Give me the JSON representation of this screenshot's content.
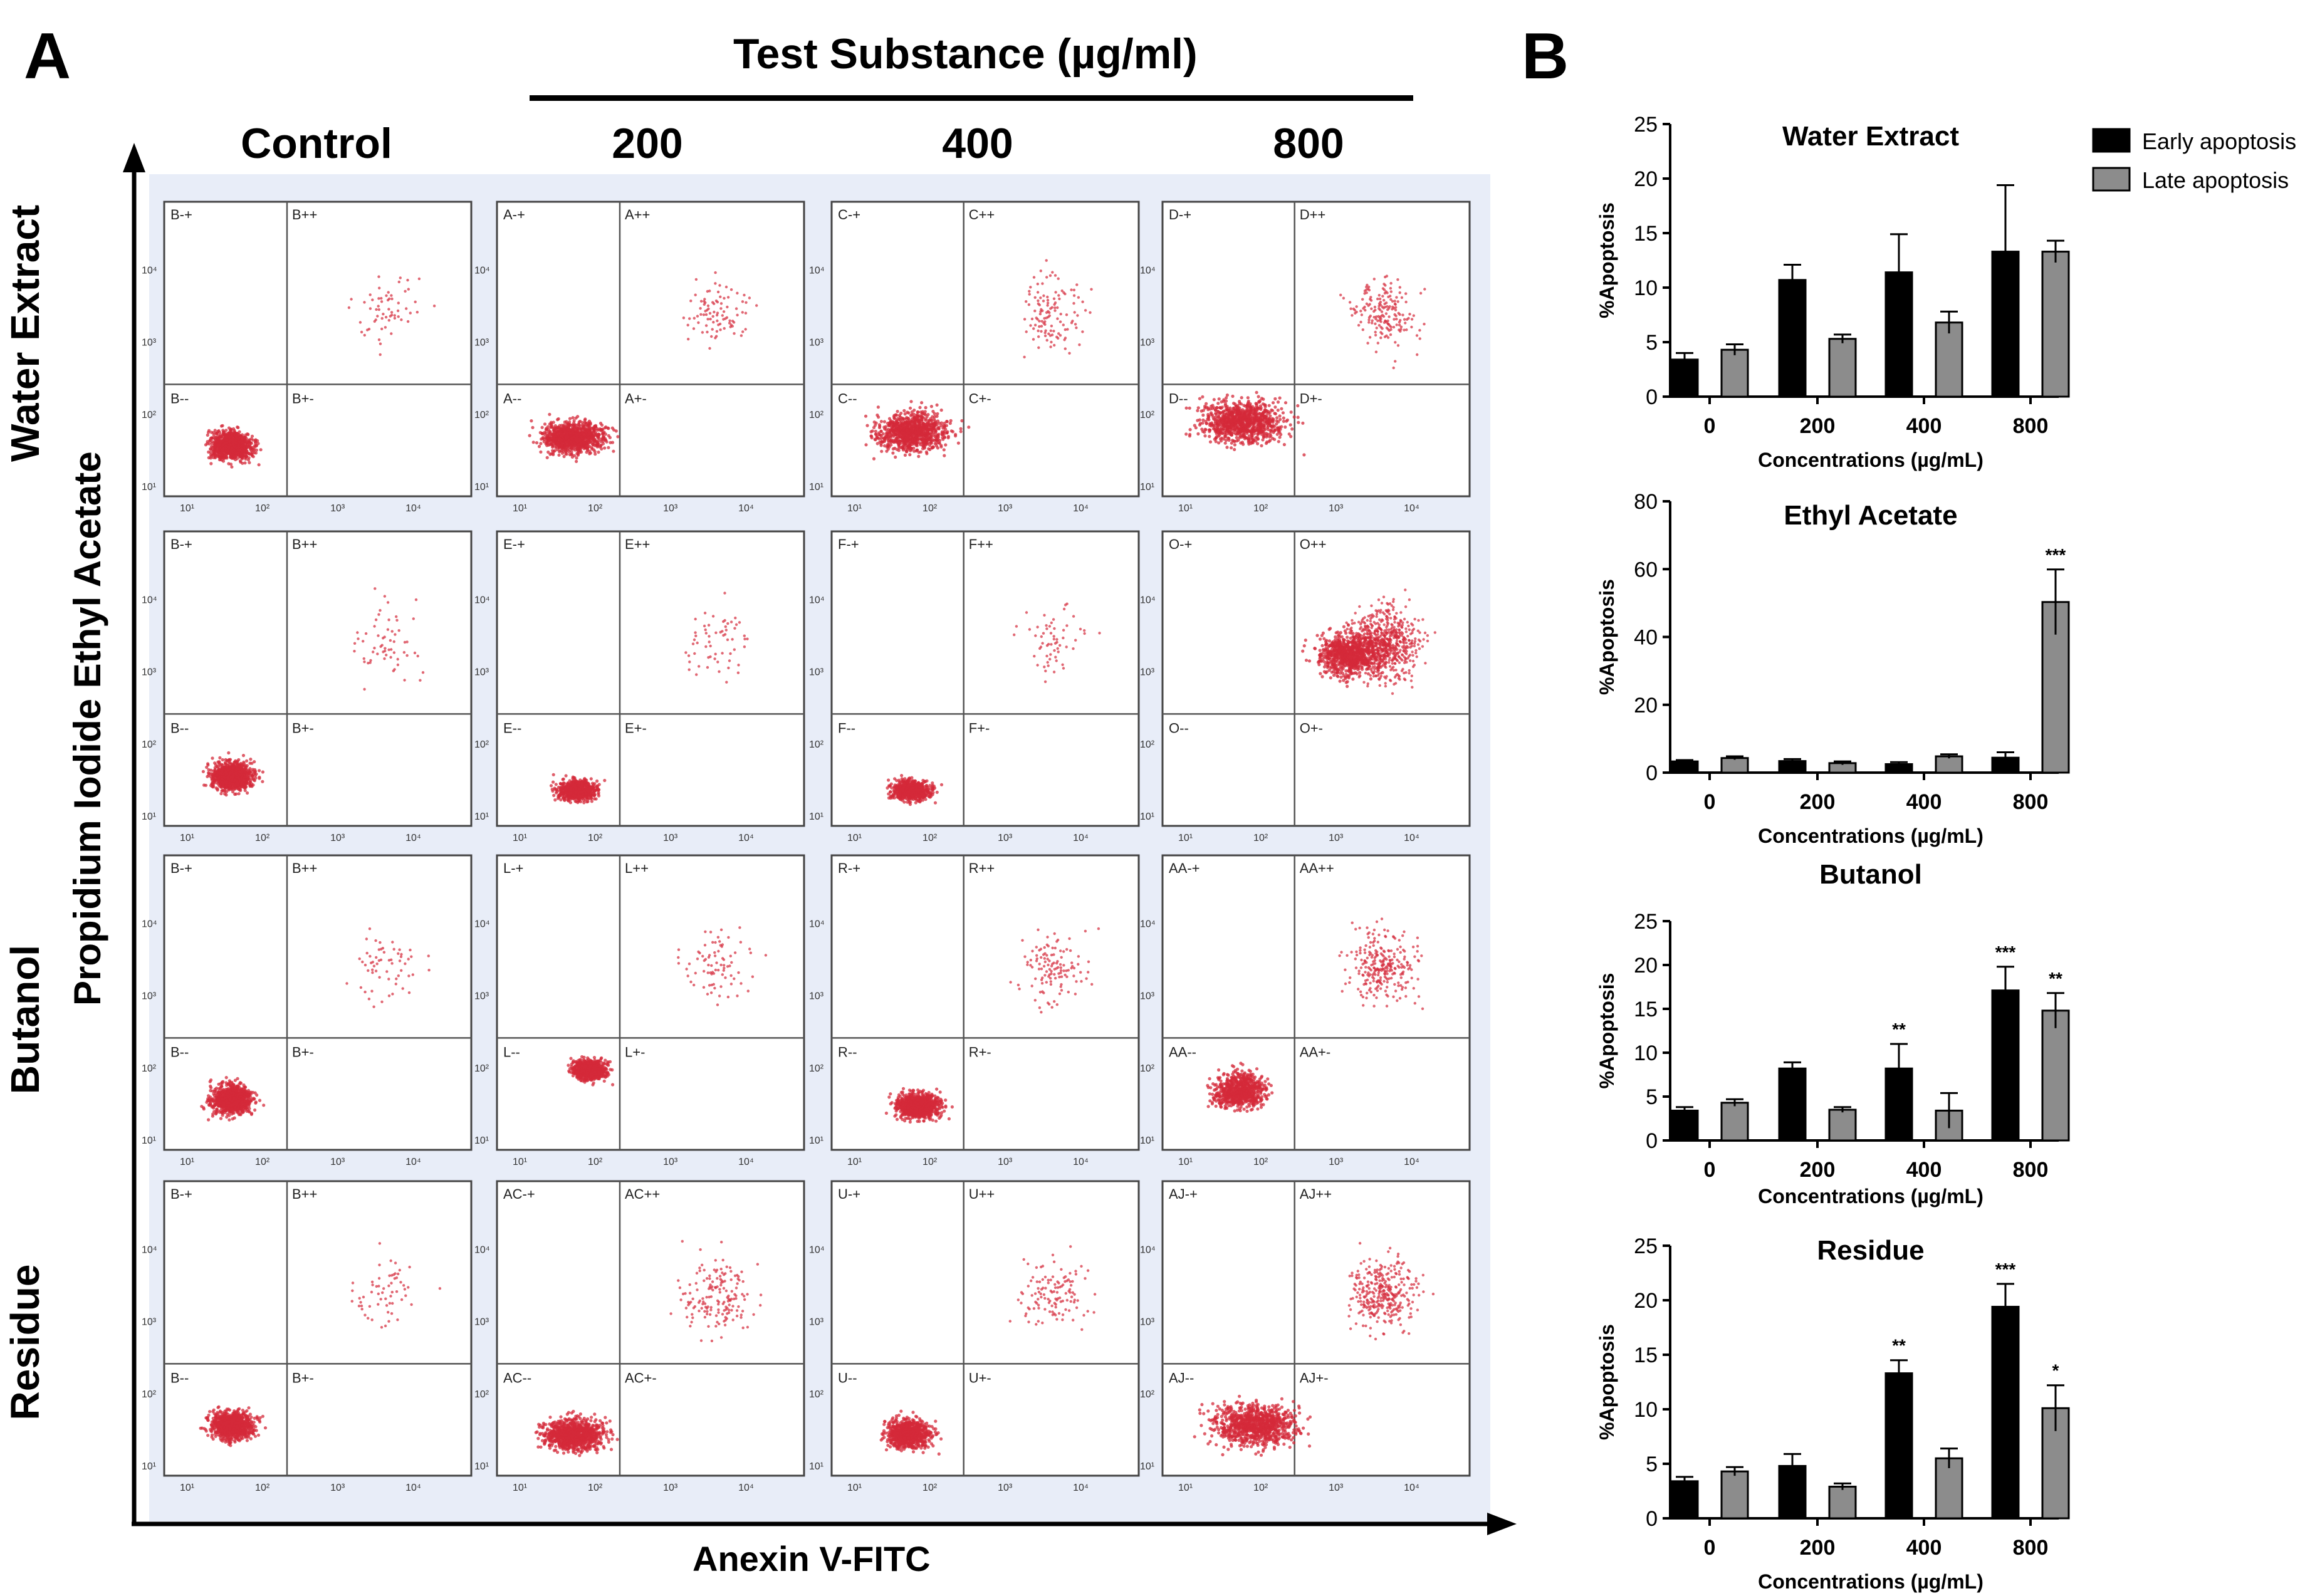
{
  "panel_a": {
    "letter": "A",
    "header": "Test Substance (µg/ml)",
    "columns": [
      "Control",
      "200",
      "400",
      "800"
    ],
    "rows": [
      "Water Extract",
      "Ethyl Acetate",
      "Butanol",
      "Residue"
    ],
    "y_axis_title": "Propidium Iodide",
    "x_axis_title": "Anexin V-FITC",
    "tick_labels_x": [
      "10¹",
      "10²",
      "10³",
      "10⁴"
    ],
    "tick_labels_y": [
      "10¹",
      "10²",
      "10³",
      "10⁴"
    ],
    "quadrant_prefixes": [
      [
        "B",
        "A",
        "C",
        "D"
      ],
      [
        "B",
        "E",
        "F",
        "O"
      ],
      [
        "B",
        "L",
        "R",
        "AA"
      ],
      [
        "B",
        "AC",
        "U",
        "AJ"
      ]
    ],
    "quadrant_suffixes": [
      "-+",
      "++",
      "--",
      "+-"
    ],
    "colors": {
      "dots": "#d42a3a",
      "background": "#e8edf8",
      "gate": "#555555"
    }
  },
  "panel_b": {
    "letter": "B",
    "legend": [
      {
        "label": "Early apoptosis",
        "color": "#000000"
      },
      {
        "label": "Late apoptosis",
        "color": "#8c8c8c"
      }
    ]
  },
  "chart_data": [
    {
      "type": "bar",
      "title": "Water Extract",
      "xlabel": "Concentrations (µg/mL)",
      "ylabel": "%Apoptosis",
      "categories": [
        "0",
        "200",
        "400",
        "800"
      ],
      "ylim": [
        0,
        25
      ],
      "yticks": [
        0,
        5,
        10,
        15,
        20,
        25
      ],
      "series": [
        {
          "name": "Early apoptosis",
          "values": [
            3.4,
            10.7,
            11.4,
            13.3
          ],
          "errors": [
            0.6,
            1.4,
            3.5,
            6.1
          ],
          "significance": [
            "",
            "",
            "",
            ""
          ]
        },
        {
          "name": "Late apoptosis",
          "values": [
            4.3,
            5.3,
            6.8,
            13.3
          ],
          "errors": [
            0.5,
            0.4,
            1.0,
            1.0
          ],
          "significance": [
            "",
            "",
            "",
            ""
          ]
        }
      ]
    },
    {
      "type": "bar",
      "title": "Ethyl Acetate",
      "xlabel": "Concentrations (µg/mL)",
      "ylabel": "%Apoptosis",
      "categories": [
        "0",
        "200",
        "400",
        "800"
      ],
      "ylim": [
        0,
        80
      ],
      "yticks": [
        0,
        20,
        40,
        60,
        80
      ],
      "series": [
        {
          "name": "Early apoptosis",
          "values": [
            3.3,
            3.4,
            2.5,
            4.4
          ],
          "errors": [
            0.4,
            0.6,
            0.6,
            1.6
          ],
          "significance": [
            "",
            "",
            "",
            ""
          ]
        },
        {
          "name": "Late apoptosis",
          "values": [
            4.3,
            2.8,
            4.8,
            50.3
          ],
          "errors": [
            0.5,
            0.5,
            0.6,
            9.6
          ],
          "significance": [
            "",
            "",
            "",
            "***"
          ]
        }
      ]
    },
    {
      "type": "bar",
      "title": "Butanol",
      "xlabel": "Concentrations (µg/mL)",
      "ylabel": "%Apoptosis",
      "categories": [
        "0",
        "200",
        "400",
        "800"
      ],
      "ylim": [
        0,
        25
      ],
      "yticks": [
        0,
        5,
        10,
        15,
        20,
        25
      ],
      "series": [
        {
          "name": "Early apoptosis",
          "values": [
            3.4,
            8.2,
            8.2,
            17.1
          ],
          "errors": [
            0.4,
            0.7,
            2.8,
            2.7
          ],
          "significance": [
            "",
            "",
            "**",
            "***"
          ]
        },
        {
          "name": "Late apoptosis",
          "values": [
            4.3,
            3.5,
            3.4,
            14.8
          ],
          "errors": [
            0.4,
            0.3,
            2.0,
            2.0
          ],
          "significance": [
            "",
            "",
            "",
            "**"
          ]
        }
      ]
    },
    {
      "type": "bar",
      "title": "Residue",
      "xlabel": "Concentrations (µg/mL)",
      "ylabel": "%Apoptosis",
      "categories": [
        "0",
        "200",
        "400",
        "800"
      ],
      "ylim": [
        0,
        25
      ],
      "yticks": [
        0,
        5,
        10,
        15,
        20,
        25
      ],
      "series": [
        {
          "name": "Early apoptosis",
          "values": [
            3.4,
            4.8,
            13.3,
            19.4
          ],
          "errors": [
            0.4,
            1.1,
            1.2,
            2.1
          ],
          "significance": [
            "",
            "",
            "**",
            "***"
          ]
        },
        {
          "name": "Late apoptosis",
          "values": [
            4.3,
            2.9,
            5.5,
            10.1
          ],
          "errors": [
            0.4,
            0.3,
            0.9,
            2.1
          ],
          "significance": [
            "",
            "",
            "",
            "*"
          ]
        }
      ]
    }
  ]
}
